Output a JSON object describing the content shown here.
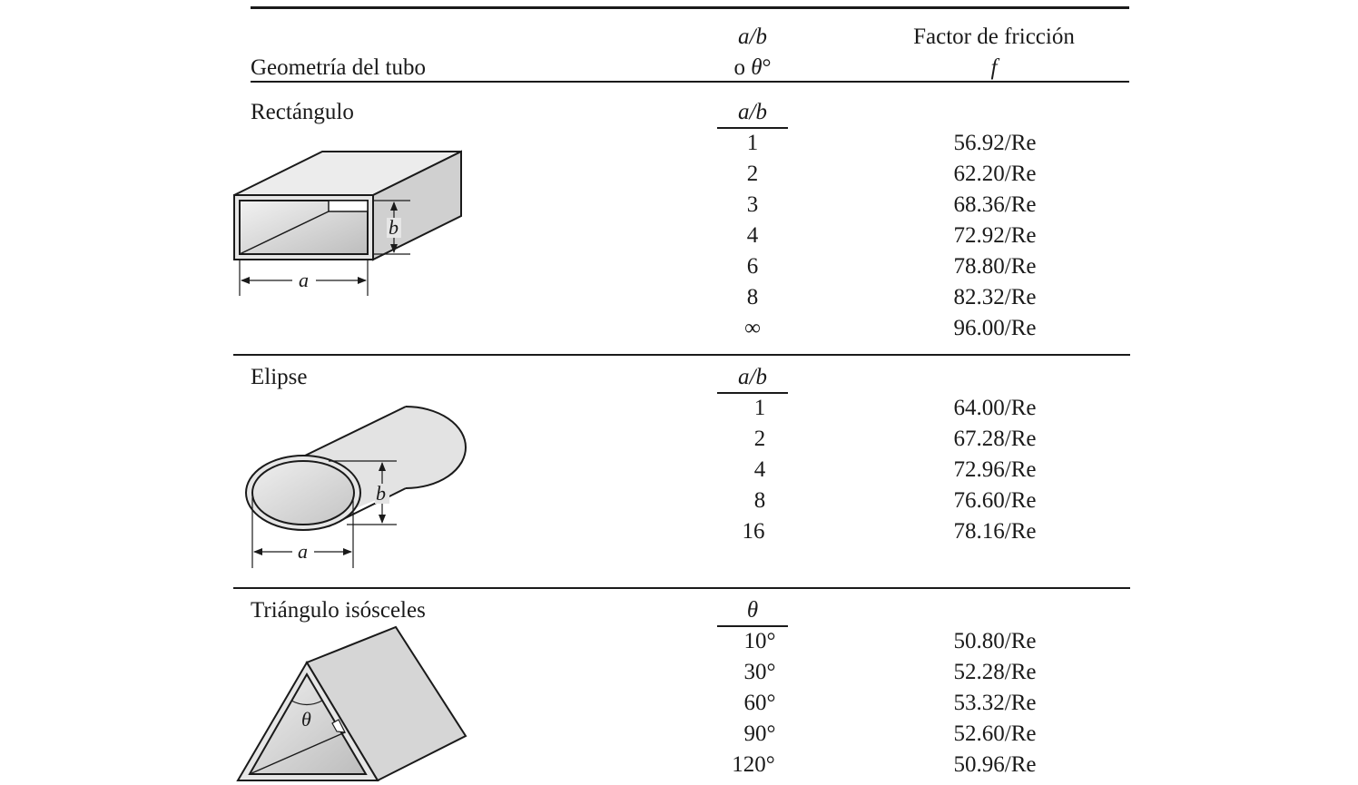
{
  "header": {
    "geometry_label": "Geometría del tubo",
    "ratio_line1": "a/b",
    "ratio_line2": "o θ°",
    "friction_line1": "Factor de fricción",
    "friction_line2": "f"
  },
  "sections": [
    {
      "name": "Rectángulo",
      "param_header": "a/b",
      "rows": [
        {
          "param": "1",
          "friction": "56.92/Re"
        },
        {
          "param": "2",
          "friction": "62.20/Re"
        },
        {
          "param": "3",
          "friction": "68.36/Re"
        },
        {
          "param": "4",
          "friction": "72.92/Re"
        },
        {
          "param": "6",
          "friction": "78.80/Re"
        },
        {
          "param": "8",
          "friction": "82.32/Re"
        },
        {
          "param": "∞",
          "friction": "96.00/Re"
        }
      ],
      "figure": {
        "dim_a": "a",
        "dim_b": "b"
      }
    },
    {
      "name": "Elipse",
      "param_header": "a/b",
      "rows": [
        {
          "param": "1",
          "friction": "64.00/Re"
        },
        {
          "param": "2",
          "friction": "67.28/Re"
        },
        {
          "param": "4",
          "friction": "72.96/Re"
        },
        {
          "param": "8",
          "friction": "76.60/Re"
        },
        {
          "param": "16",
          "friction": "78.16/Re"
        }
      ],
      "figure": {
        "dim_a": "a",
        "dim_b": "b"
      }
    },
    {
      "name": "Triángulo isósceles",
      "param_header": "θ",
      "rows": [
        {
          "param": "10°",
          "friction": "50.80/Re"
        },
        {
          "param": "30°",
          "friction": "52.28/Re"
        },
        {
          "param": "60°",
          "friction": "53.32/Re"
        },
        {
          "param": "90°",
          "friction": "52.60/Re"
        },
        {
          "param": "120°",
          "friction": "50.96/Re"
        }
      ],
      "figure": {
        "dim_theta": "θ"
      }
    }
  ]
}
